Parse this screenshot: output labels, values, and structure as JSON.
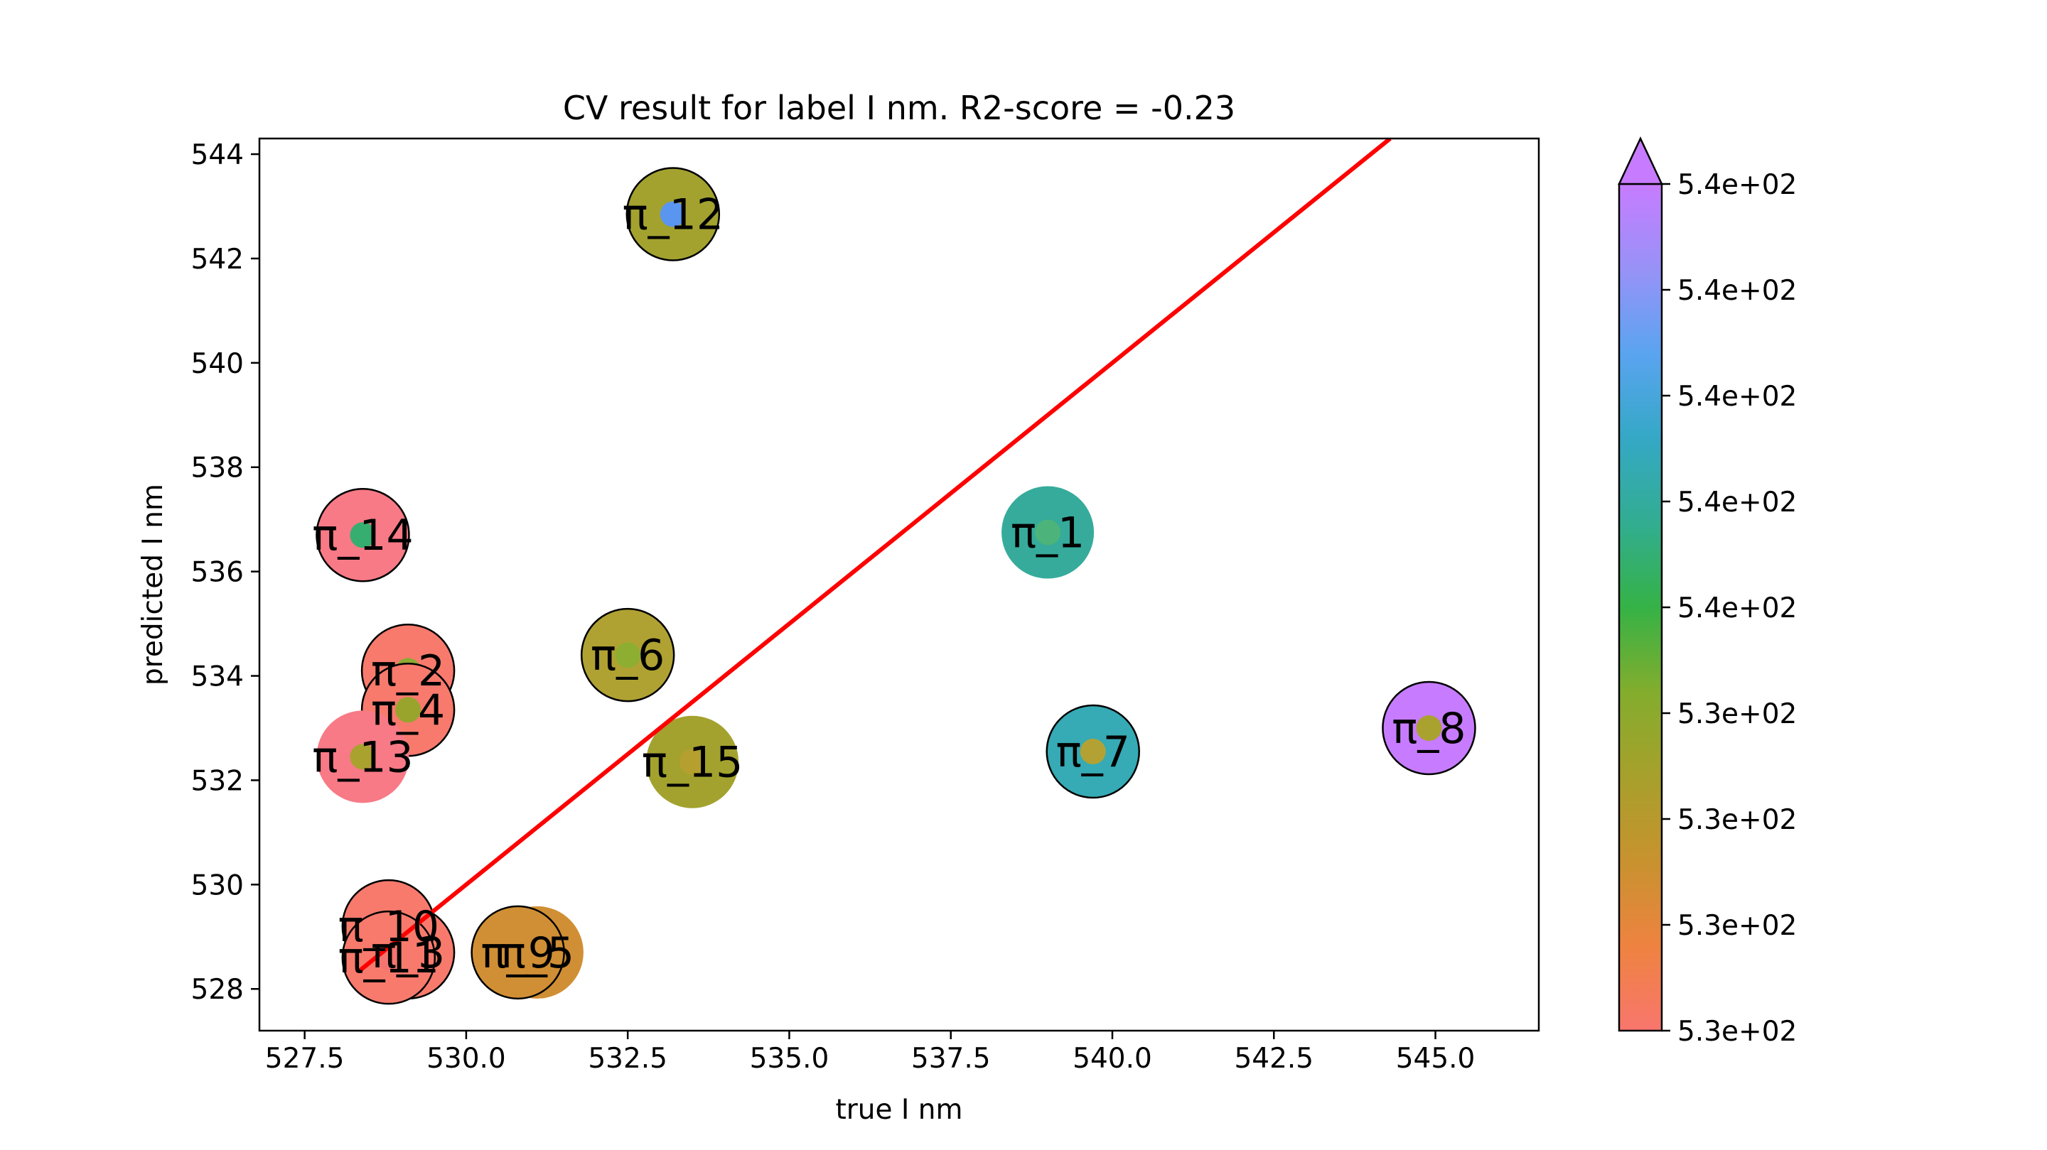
{
  "chart_data": {
    "type": "scatter",
    "title": "CV result for label I nm. R2-score = -0.23",
    "xlabel": "true I nm",
    "ylabel": "predicted I nm",
    "xlim": [
      526.8,
      546.6
    ],
    "ylim": [
      527.2,
      544.3
    ],
    "xticks": [
      527.5,
      530.0,
      532.5,
      535.0,
      537.5,
      540.0,
      542.5,
      545.0
    ],
    "xtick_labels": [
      "527.5",
      "530.0",
      "532.5",
      "535.0",
      "537.5",
      "540.0",
      "542.5",
      "545.0"
    ],
    "yticks": [
      528,
      530,
      532,
      534,
      536,
      538,
      540,
      542,
      544
    ],
    "ytick_labels": [
      "528",
      "530",
      "532",
      "534",
      "536",
      "538",
      "540",
      "542",
      "544"
    ],
    "grid": false,
    "reference_line": {
      "color": "#ff0000",
      "from": [
        528.35,
        528.35
      ],
      "to": [
        544.3,
        544.3
      ]
    },
    "colorbar": {
      "vmin": 528.3,
      "vmax": 545.0,
      "extend": "max",
      "extend_color": "#c77cff",
      "ticks": [
        "5.3e+02",
        "5.3e+02",
        "5.3e+02",
        "5.3e+02",
        "5.4e+02",
        "5.4e+02",
        "5.4e+02",
        "5.4e+02",
        "5.4e+02"
      ],
      "colors": [
        "#f8766d",
        "#ee8340",
        "#c8922f",
        "#a7a02c",
        "#83ad2d",
        "#35b246",
        "#32ad91",
        "#35a8c6",
        "#5aa4f0",
        "#9892f7",
        "#c77cff"
      ]
    },
    "points": [
      {
        "label": "π_1",
        "x": 539.0,
        "y": 536.75,
        "color": "#36ab9b",
        "edge": false,
        "inner_color": "#4cb47a"
      },
      {
        "label": "π_2",
        "x": 529.1,
        "y": 534.1,
        "color": "#f77a6d",
        "edge": true,
        "inner_color": "#8eaa32"
      },
      {
        "label": "π_3",
        "x": 529.1,
        "y": 528.7,
        "color": "#f77a6d",
        "edge": true,
        "inner_color": "#f47570"
      },
      {
        "label": "π_4",
        "x": 529.1,
        "y": 533.35,
        "color": "#f77a6d",
        "edge": true,
        "inner_color": "#99a42d"
      },
      {
        "label": "π_5",
        "x": 531.1,
        "y": 528.7,
        "color": "#d08f34",
        "edge": false,
        "inner_color": "#d69136"
      },
      {
        "label": "π_6",
        "x": 532.5,
        "y": 534.4,
        "color": "#b0a232",
        "edge": true,
        "inner_color": "#8eae32"
      },
      {
        "label": "π_7",
        "x": 539.7,
        "y": 532.55,
        "color": "#36aab5",
        "edge": true,
        "inner_color": "#b3a233"
      },
      {
        "label": "π_8",
        "x": 544.9,
        "y": 533.0,
        "color": "#c77cff",
        "edge": true,
        "inner_color": "#a9a22f"
      },
      {
        "label": "π_9",
        "x": 530.8,
        "y": 528.7,
        "color": "#d08f34",
        "edge": true,
        "inner_color": "#d08f34"
      },
      {
        "label": "π_10",
        "x": 528.8,
        "y": 529.2,
        "color": "#f77a6d",
        "edge": true,
        "inner_color": "#f67e69"
      },
      {
        "label": "π_11",
        "x": 528.8,
        "y": 528.6,
        "color": "#f77a6d",
        "edge": true,
        "inner_color": "#f47570"
      },
      {
        "label": "π_12",
        "x": 533.2,
        "y": 542.85,
        "color": "#a3a22f",
        "edge": true,
        "inner_color": "#5a95f0"
      },
      {
        "label": "π_13",
        "x": 528.4,
        "y": 532.45,
        "color": "#f77a86",
        "edge": false,
        "inner_color": "#a9a22f"
      },
      {
        "label": "π_14",
        "x": 528.4,
        "y": 536.7,
        "color": "#f77a86",
        "edge": true,
        "inner_color": "#36ae70"
      },
      {
        "label": "π_15",
        "x": 533.5,
        "y": 532.35,
        "color": "#a3a22f",
        "edge": false,
        "inner_color": "#b5a02f"
      }
    ]
  }
}
